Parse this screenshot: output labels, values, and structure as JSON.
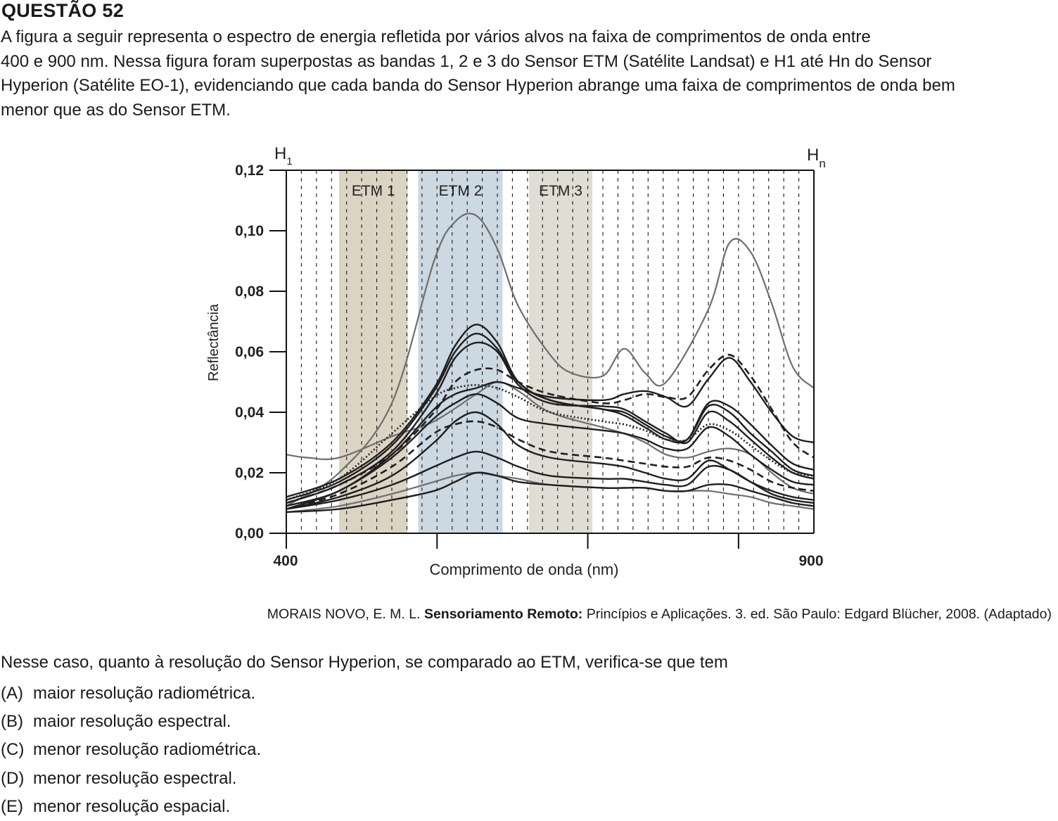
{
  "question": {
    "title": "QUESTÃO 52",
    "intro_lines": [
      "A figura a seguir representa o espectro de energia refletida por vários alvos na faixa de comprimentos de onda entre",
      "400 e 900 nm. Nessa figura foram superpostas as bandas 1, 2 e 3 do Sensor ETM (Satélite Landsat) e H1 até Hn do Sensor",
      "Hyperion (Satélite EO-1), evidenciando que cada banda do Sensor Hyperion  abrange uma faixa de comprimentos de onda bem",
      "menor que as do Sensor ETM."
    ],
    "stem": "Nesse caso, quanto à resolução do Sensor Hyperion, se comparado ao ETM, verifica-se que tem",
    "options": [
      {
        "letter": "(A)",
        "text": "maior resolução radiométrica."
      },
      {
        "letter": "(B)",
        "text": "maior resolução espectral."
      },
      {
        "letter": "(C)",
        "text": "menor resolução radiométrica."
      },
      {
        "letter": "(D)",
        "text": "menor resolução espectral."
      },
      {
        "letter": "(E)",
        "text": "menor resolução espacial."
      }
    ]
  },
  "citation": {
    "authors": "MORAIS NOVO, E. M. L. ",
    "title": "Sensoriamento Remoto:",
    "rest": " Princípios e Aplicações. 3. ed. São Paulo: Edgard Blücher, 2008. (Adaptado)"
  },
  "chart_data": {
    "type": "line",
    "title": "",
    "xlabel": "Comprimento de onda (nm)",
    "ylabel": "Reflectância",
    "xlim": [
      400,
      900
    ],
    "ylim": [
      0,
      0.12
    ],
    "x_tick_labels": [
      "400",
      "900"
    ],
    "y_tick_labels": [
      "0,00",
      "0,02",
      "0,04",
      "0,06",
      "0,08",
      "0,10",
      "0,12"
    ],
    "y_ticks": [
      0,
      0.02,
      0.04,
      0.06,
      0.08,
      0.1,
      0.12
    ],
    "band_labels": {
      "h_first": "H",
      "h_first_sub": "1",
      "h_last": "H",
      "h_last_sub": "n"
    },
    "bands": [
      {
        "name": "ETM 1",
        "range": [
          450,
          515
        ],
        "color": "#d9d2c0"
      },
      {
        "name": "ETM 2",
        "range": [
          525,
          605
        ],
        "color": "#c9d6e0"
      },
      {
        "name": "ETM 3",
        "range": [
          630,
          690
        ],
        "color": "#dcdcd2"
      }
    ],
    "hyperion_band_count": 36,
    "series": [
      {
        "style": "gray",
        "x": [
          400,
          450,
          500,
          540,
          560,
          580,
          600,
          620,
          650,
          670,
          700,
          720,
          740,
          760,
          800,
          820,
          840,
          860,
          880,
          900
        ],
        "y": [
          0.009,
          0.02,
          0.043,
          0.09,
          0.103,
          0.105,
          0.094,
          0.075,
          0.059,
          0.053,
          0.052,
          0.061,
          0.053,
          0.05,
          0.074,
          0.096,
          0.093,
          0.076,
          0.055,
          0.048
        ]
      },
      {
        "style": "gray",
        "x": [
          400,
          420,
          450,
          500,
          540,
          580,
          600,
          620,
          650,
          700,
          720,
          740,
          760,
          780,
          800,
          820,
          840,
          860,
          880,
          900
        ],
        "y": [
          0.026,
          0.025,
          0.025,
          0.032,
          0.037,
          0.046,
          0.05,
          0.047,
          0.04,
          0.035,
          0.033,
          0.03,
          0.026,
          0.025,
          0.027,
          0.028,
          0.026,
          0.02,
          0.015,
          0.013
        ]
      },
      {
        "style": "solid",
        "x": [
          400,
          450,
          500,
          540,
          560,
          580,
          600,
          620,
          650,
          700,
          720,
          740,
          760,
          780,
          800,
          820,
          840,
          860,
          880,
          900
        ],
        "y": [
          0.012,
          0.018,
          0.03,
          0.048,
          0.062,
          0.069,
          0.063,
          0.05,
          0.044,
          0.041,
          0.039,
          0.035,
          0.031,
          0.031,
          0.043,
          0.042,
          0.036,
          0.029,
          0.023,
          0.021
        ]
      },
      {
        "style": "solid",
        "x": [
          400,
          450,
          500,
          540,
          560,
          580,
          600,
          620,
          650,
          700,
          720,
          740,
          760,
          780,
          800,
          820,
          840,
          860,
          880,
          900
        ],
        "y": [
          0.011,
          0.017,
          0.029,
          0.047,
          0.06,
          0.066,
          0.061,
          0.05,
          0.044,
          0.041,
          0.04,
          0.036,
          0.032,
          0.031,
          0.042,
          0.04,
          0.033,
          0.027,
          0.021,
          0.019
        ]
      },
      {
        "style": "solid",
        "x": [
          400,
          450,
          500,
          540,
          560,
          580,
          600,
          620,
          650,
          700,
          720,
          740,
          760,
          780,
          800,
          820,
          840,
          860,
          880,
          900
        ],
        "y": [
          0.01,
          0.016,
          0.027,
          0.045,
          0.058,
          0.063,
          0.06,
          0.049,
          0.043,
          0.042,
          0.041,
          0.037,
          0.033,
          0.03,
          0.04,
          0.037,
          0.031,
          0.025,
          0.02,
          0.018
        ]
      },
      {
        "style": "solid",
        "x": [
          400,
          450,
          500,
          540,
          560,
          580,
          600,
          620,
          650,
          700,
          720,
          740,
          760,
          780,
          800,
          820,
          840,
          860,
          880,
          900
        ],
        "y": [
          0.009,
          0.014,
          0.026,
          0.041,
          0.046,
          0.048,
          0.05,
          0.048,
          0.045,
          0.044,
          0.046,
          0.047,
          0.045,
          0.042,
          0.051,
          0.058,
          0.05,
          0.04,
          0.032,
          0.03
        ]
      },
      {
        "style": "dashed",
        "x": [
          400,
          450,
          500,
          540,
          560,
          580,
          600,
          620,
          650,
          700,
          720,
          740,
          760,
          780,
          800,
          820,
          840,
          860,
          880,
          900
        ],
        "y": [
          0.01,
          0.016,
          0.026,
          0.04,
          0.05,
          0.054,
          0.054,
          0.05,
          0.046,
          0.043,
          0.044,
          0.046,
          0.045,
          0.045,
          0.054,
          0.059,
          0.052,
          0.041,
          0.03,
          0.025
        ]
      },
      {
        "style": "dotted",
        "x": [
          400,
          450,
          500,
          540,
          560,
          580,
          600,
          620,
          650,
          700,
          720,
          740,
          760,
          780,
          800,
          820,
          840,
          860,
          880,
          900
        ],
        "y": [
          0.011,
          0.018,
          0.033,
          0.045,
          0.048,
          0.049,
          0.048,
          0.045,
          0.04,
          0.037,
          0.036,
          0.034,
          0.031,
          0.031,
          0.036,
          0.034,
          0.029,
          0.024,
          0.02,
          0.019
        ]
      },
      {
        "style": "solid",
        "x": [
          400,
          450,
          500,
          540,
          560,
          580,
          600,
          620,
          650,
          700,
          720,
          740,
          760,
          780,
          800,
          820,
          840,
          860,
          880,
          900
        ],
        "y": [
          0.008,
          0.014,
          0.025,
          0.038,
          0.043,
          0.046,
          0.043,
          0.038,
          0.036,
          0.034,
          0.033,
          0.031,
          0.028,
          0.028,
          0.035,
          0.032,
          0.026,
          0.021,
          0.017,
          0.016
        ]
      },
      {
        "style": "dashed",
        "x": [
          400,
          450,
          500,
          540,
          560,
          580,
          600,
          620,
          650,
          700,
          720,
          740,
          760,
          780,
          800,
          820,
          840,
          860,
          880,
          900
        ],
        "y": [
          0.008,
          0.013,
          0.022,
          0.033,
          0.036,
          0.037,
          0.035,
          0.031,
          0.027,
          0.025,
          0.024,
          0.023,
          0.022,
          0.022,
          0.025,
          0.024,
          0.021,
          0.017,
          0.015,
          0.014
        ]
      },
      {
        "style": "solid",
        "x": [
          400,
          450,
          500,
          540,
          560,
          580,
          600,
          620,
          650,
          700,
          720,
          740,
          760,
          780,
          800,
          820,
          840,
          860,
          880,
          900
        ],
        "y": [
          0.008,
          0.012,
          0.019,
          0.03,
          0.037,
          0.04,
          0.036,
          0.029,
          0.025,
          0.023,
          0.022,
          0.02,
          0.018,
          0.018,
          0.024,
          0.021,
          0.017,
          0.014,
          0.012,
          0.011
        ]
      },
      {
        "style": "solid",
        "x": [
          400,
          450,
          500,
          540,
          560,
          580,
          600,
          620,
          650,
          700,
          720,
          740,
          760,
          780,
          800,
          820,
          840,
          860,
          880,
          900
        ],
        "y": [
          0.008,
          0.011,
          0.016,
          0.022,
          0.025,
          0.027,
          0.025,
          0.022,
          0.019,
          0.018,
          0.018,
          0.017,
          0.016,
          0.016,
          0.022,
          0.021,
          0.017,
          0.013,
          0.011,
          0.01
        ]
      },
      {
        "style": "gray",
        "x": [
          400,
          450,
          500,
          540,
          560,
          580,
          600,
          620,
          650,
          700,
          720,
          740,
          760,
          780,
          800,
          820,
          840,
          860,
          880,
          900
        ],
        "y": [
          0.007,
          0.009,
          0.013,
          0.017,
          0.019,
          0.02,
          0.019,
          0.018,
          0.016,
          0.015,
          0.015,
          0.015,
          0.014,
          0.014,
          0.014,
          0.013,
          0.012,
          0.01,
          0.009,
          0.008
        ]
      },
      {
        "style": "solid",
        "x": [
          400,
          450,
          500,
          540,
          560,
          580,
          600,
          620,
          650,
          700,
          720,
          740,
          760,
          780,
          800,
          820,
          840,
          860,
          880,
          900
        ],
        "y": [
          0.007,
          0.008,
          0.011,
          0.014,
          0.017,
          0.02,
          0.019,
          0.017,
          0.016,
          0.015,
          0.015,
          0.015,
          0.014,
          0.014,
          0.016,
          0.016,
          0.014,
          0.012,
          0.01,
          0.009
        ]
      }
    ]
  }
}
